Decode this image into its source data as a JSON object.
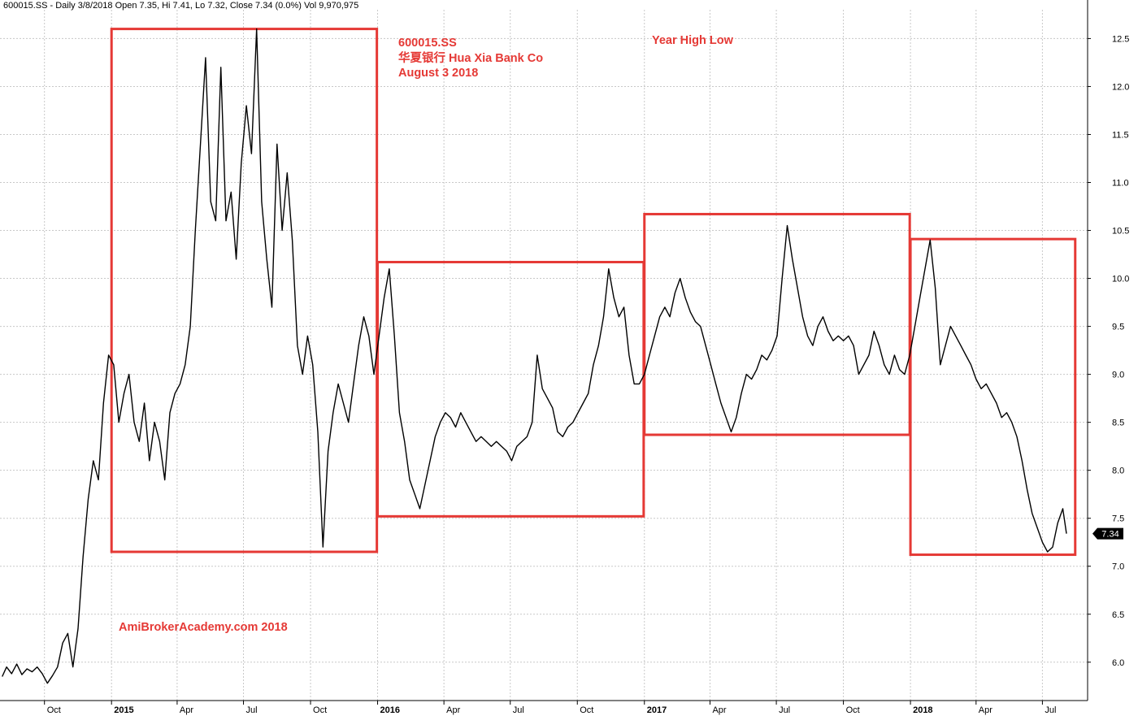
{
  "header": {
    "info_line": "600015.SS - Daily 3/8/2018 Open 7.35, Hi 7.41, Lo 7.32, Close 7.34 (0.0%) Vol 9,970,975"
  },
  "annotations": {
    "ticker": "600015.SS",
    "company": "华夏银行 Hua Xia Bank Co",
    "date": "August 3 2018",
    "study": "Year High Low",
    "watermark": "AmiBrokerAcademy.com   2018"
  },
  "colors": {
    "price_line": "#000000",
    "box": "#e53935",
    "grid": "#c8c8c8",
    "annotation": "#e53935",
    "last_price_tag": "#000000"
  },
  "chart_data": {
    "type": "line",
    "title": "600015.SS - Daily",
    "xlabel": "",
    "ylabel": "",
    "ylim": [
      5.6,
      12.8
    ],
    "y_ticks": [
      "6.0",
      "6.5",
      "7.0",
      "7.5",
      "8.0",
      "8.5",
      "9.0",
      "9.5",
      "10.0",
      "10.5",
      "11.0",
      "11.5",
      "12.0",
      "12.5"
    ],
    "x_ticks": [
      {
        "label": "Oct",
        "date": "2014-10-01",
        "bold": false
      },
      {
        "label": "2015",
        "date": "2015-01-01",
        "bold": true
      },
      {
        "label": "Apr",
        "date": "2015-04-01",
        "bold": false
      },
      {
        "label": "Jul",
        "date": "2015-07-01",
        "bold": false
      },
      {
        "label": "Oct",
        "date": "2015-10-01",
        "bold": false
      },
      {
        "label": "2016",
        "date": "2016-01-01",
        "bold": true
      },
      {
        "label": "Apr",
        "date": "2016-04-01",
        "bold": false
      },
      {
        "label": "Jul",
        "date": "2016-07-01",
        "bold": false
      },
      {
        "label": "Oct",
        "date": "2016-10-01",
        "bold": false
      },
      {
        "label": "2017",
        "date": "2017-01-01",
        "bold": true
      },
      {
        "label": "Apr",
        "date": "2017-04-01",
        "bold": false
      },
      {
        "label": "Jul",
        "date": "2017-07-01",
        "bold": false
      },
      {
        "label": "Oct",
        "date": "2017-10-01",
        "bold": false
      },
      {
        "label": "2018",
        "date": "2018-01-01",
        "bold": true
      },
      {
        "label": "Apr",
        "date": "2018-04-01",
        "bold": false
      },
      {
        "label": "Jul",
        "date": "2018-07-01",
        "bold": false
      }
    ],
    "grid": true,
    "last_price": 7.34,
    "last_price_label": "7.34",
    "series": [
      {
        "points": [
          [
            "2014-08-04",
            5.85
          ],
          [
            "2014-08-10",
            5.95
          ],
          [
            "2014-08-17",
            5.88
          ],
          [
            "2014-08-24",
            5.98
          ],
          [
            "2014-08-31",
            5.87
          ],
          [
            "2014-09-07",
            5.93
          ],
          [
            "2014-09-14",
            5.9
          ],
          [
            "2014-09-21",
            5.95
          ],
          [
            "2014-09-28",
            5.88
          ],
          [
            "2014-10-05",
            5.78
          ],
          [
            "2014-10-12",
            5.86
          ],
          [
            "2014-10-19",
            5.95
          ],
          [
            "2014-10-26",
            6.2
          ],
          [
            "2014-11-02",
            6.3
          ],
          [
            "2014-11-09",
            5.95
          ],
          [
            "2014-11-16",
            6.35
          ],
          [
            "2014-11-23",
            7.1
          ],
          [
            "2014-11-30",
            7.7
          ],
          [
            "2014-12-07",
            8.1
          ],
          [
            "2014-12-14",
            7.9
          ],
          [
            "2014-12-21",
            8.7
          ],
          [
            "2014-12-28",
            9.2
          ],
          [
            "2015-01-04",
            9.1
          ],
          [
            "2015-01-11",
            8.5
          ],
          [
            "2015-01-18",
            8.8
          ],
          [
            "2015-01-25",
            9.0
          ],
          [
            "2015-02-01",
            8.5
          ],
          [
            "2015-02-08",
            8.3
          ],
          [
            "2015-02-15",
            8.7
          ],
          [
            "2015-02-22",
            8.1
          ],
          [
            "2015-03-01",
            8.5
          ],
          [
            "2015-03-08",
            8.3
          ],
          [
            "2015-03-15",
            7.9
          ],
          [
            "2015-03-22",
            8.6
          ],
          [
            "2015-03-29",
            8.8
          ],
          [
            "2015-04-05",
            8.9
          ],
          [
            "2015-04-12",
            9.1
          ],
          [
            "2015-04-19",
            9.5
          ],
          [
            "2015-04-26",
            10.5
          ],
          [
            "2015-05-03",
            11.4
          ],
          [
            "2015-05-10",
            12.3
          ],
          [
            "2015-05-17",
            10.8
          ],
          [
            "2015-05-24",
            10.6
          ],
          [
            "2015-05-31",
            12.2
          ],
          [
            "2015-06-07",
            10.6
          ],
          [
            "2015-06-14",
            10.9
          ],
          [
            "2015-06-21",
            10.2
          ],
          [
            "2015-06-28",
            11.2
          ],
          [
            "2015-07-05",
            11.8
          ],
          [
            "2015-07-12",
            11.3
          ],
          [
            "2015-07-19",
            12.6
          ],
          [
            "2015-07-26",
            10.8
          ],
          [
            "2015-08-02",
            10.2
          ],
          [
            "2015-08-09",
            9.7
          ],
          [
            "2015-08-16",
            11.4
          ],
          [
            "2015-08-23",
            10.5
          ],
          [
            "2015-08-30",
            11.1
          ],
          [
            "2015-09-06",
            10.4
          ],
          [
            "2015-09-13",
            9.3
          ],
          [
            "2015-09-20",
            9.0
          ],
          [
            "2015-09-27",
            9.4
          ],
          [
            "2015-10-04",
            9.1
          ],
          [
            "2015-10-11",
            8.4
          ],
          [
            "2015-10-18",
            7.2
          ],
          [
            "2015-10-25",
            8.2
          ],
          [
            "2015-11-01",
            8.6
          ],
          [
            "2015-11-08",
            8.9
          ],
          [
            "2015-11-15",
            8.7
          ],
          [
            "2015-11-22",
            8.5
          ],
          [
            "2015-11-29",
            8.9
          ],
          [
            "2015-12-06",
            9.3
          ],
          [
            "2015-12-13",
            9.6
          ],
          [
            "2015-12-20",
            9.4
          ],
          [
            "2015-12-27",
            9.0
          ],
          [
            "2016-01-03",
            9.4
          ],
          [
            "2016-01-10",
            9.8
          ],
          [
            "2016-01-17",
            10.1
          ],
          [
            "2016-01-24",
            9.4
          ],
          [
            "2016-01-31",
            8.6
          ],
          [
            "2016-02-07",
            8.3
          ],
          [
            "2016-02-14",
            7.9
          ],
          [
            "2016-02-21",
            7.75
          ],
          [
            "2016-02-28",
            7.6
          ],
          [
            "2016-03-06",
            7.85
          ],
          [
            "2016-03-13",
            8.1
          ],
          [
            "2016-03-20",
            8.35
          ],
          [
            "2016-03-27",
            8.5
          ],
          [
            "2016-04-03",
            8.6
          ],
          [
            "2016-04-10",
            8.55
          ],
          [
            "2016-04-17",
            8.45
          ],
          [
            "2016-04-24",
            8.6
          ],
          [
            "2016-05-01",
            8.5
          ],
          [
            "2016-05-08",
            8.4
          ],
          [
            "2016-05-15",
            8.3
          ],
          [
            "2016-05-22",
            8.35
          ],
          [
            "2016-05-29",
            8.3
          ],
          [
            "2016-06-05",
            8.25
          ],
          [
            "2016-06-12",
            8.3
          ],
          [
            "2016-06-19",
            8.25
          ],
          [
            "2016-06-26",
            8.2
          ],
          [
            "2016-07-03",
            8.1
          ],
          [
            "2016-07-10",
            8.25
          ],
          [
            "2016-07-17",
            8.3
          ],
          [
            "2016-07-24",
            8.35
          ],
          [
            "2016-07-31",
            8.5
          ],
          [
            "2016-08-07",
            9.2
          ],
          [
            "2016-08-14",
            8.85
          ],
          [
            "2016-08-21",
            8.75
          ],
          [
            "2016-08-28",
            8.65
          ],
          [
            "2016-09-04",
            8.4
          ],
          [
            "2016-09-11",
            8.35
          ],
          [
            "2016-09-18",
            8.45
          ],
          [
            "2016-09-25",
            8.5
          ],
          [
            "2016-10-02",
            8.6
          ],
          [
            "2016-10-09",
            8.7
          ],
          [
            "2016-10-16",
            8.8
          ],
          [
            "2016-10-23",
            9.1
          ],
          [
            "2016-10-30",
            9.3
          ],
          [
            "2016-11-06",
            9.6
          ],
          [
            "2016-11-13",
            10.1
          ],
          [
            "2016-11-20",
            9.8
          ],
          [
            "2016-11-27",
            9.6
          ],
          [
            "2016-12-04",
            9.7
          ],
          [
            "2016-12-11",
            9.2
          ],
          [
            "2016-12-18",
            8.9
          ],
          [
            "2016-12-25",
            8.9
          ],
          [
            "2017-01-01",
            9.0
          ],
          [
            "2017-01-08",
            9.2
          ],
          [
            "2017-01-15",
            9.4
          ],
          [
            "2017-01-22",
            9.6
          ],
          [
            "2017-01-29",
            9.7
          ],
          [
            "2017-02-05",
            9.6
          ],
          [
            "2017-02-12",
            9.85
          ],
          [
            "2017-02-19",
            10.0
          ],
          [
            "2017-02-26",
            9.8
          ],
          [
            "2017-03-05",
            9.65
          ],
          [
            "2017-03-12",
            9.55
          ],
          [
            "2017-03-19",
            9.5
          ],
          [
            "2017-03-26",
            9.3
          ],
          [
            "2017-04-02",
            9.1
          ],
          [
            "2017-04-09",
            8.9
          ],
          [
            "2017-04-16",
            8.7
          ],
          [
            "2017-04-23",
            8.55
          ],
          [
            "2017-04-30",
            8.4
          ],
          [
            "2017-05-07",
            8.55
          ],
          [
            "2017-05-14",
            8.8
          ],
          [
            "2017-05-21",
            9.0
          ],
          [
            "2017-05-28",
            8.95
          ],
          [
            "2017-06-04",
            9.05
          ],
          [
            "2017-06-11",
            9.2
          ],
          [
            "2017-06-18",
            9.15
          ],
          [
            "2017-06-25",
            9.25
          ],
          [
            "2017-07-02",
            9.4
          ],
          [
            "2017-07-09",
            10.0
          ],
          [
            "2017-07-16",
            10.55
          ],
          [
            "2017-07-23",
            10.2
          ],
          [
            "2017-07-30",
            9.9
          ],
          [
            "2017-08-06",
            9.6
          ],
          [
            "2017-08-13",
            9.4
          ],
          [
            "2017-08-20",
            9.3
          ],
          [
            "2017-08-27",
            9.5
          ],
          [
            "2017-09-03",
            9.6
          ],
          [
            "2017-09-10",
            9.45
          ],
          [
            "2017-09-17",
            9.35
          ],
          [
            "2017-09-24",
            9.4
          ],
          [
            "2017-10-01",
            9.35
          ],
          [
            "2017-10-08",
            9.4
          ],
          [
            "2017-10-15",
            9.3
          ],
          [
            "2017-10-22",
            9.0
          ],
          [
            "2017-10-29",
            9.1
          ],
          [
            "2017-11-05",
            9.2
          ],
          [
            "2017-11-12",
            9.45
          ],
          [
            "2017-11-19",
            9.3
          ],
          [
            "2017-11-26",
            9.1
          ],
          [
            "2017-12-03",
            9.0
          ],
          [
            "2017-12-10",
            9.2
          ],
          [
            "2017-12-17",
            9.05
          ],
          [
            "2017-12-24",
            9.0
          ],
          [
            "2017-12-31",
            9.2
          ],
          [
            "2018-01-07",
            9.5
          ],
          [
            "2018-01-14",
            9.8
          ],
          [
            "2018-01-21",
            10.1
          ],
          [
            "2018-01-28",
            10.4
          ],
          [
            "2018-02-04",
            9.9
          ],
          [
            "2018-02-11",
            9.1
          ],
          [
            "2018-02-18",
            9.3
          ],
          [
            "2018-02-25",
            9.5
          ],
          [
            "2018-03-04",
            9.4
          ],
          [
            "2018-03-11",
            9.3
          ],
          [
            "2018-03-18",
            9.2
          ],
          [
            "2018-03-25",
            9.1
          ],
          [
            "2018-04-01",
            8.95
          ],
          [
            "2018-04-08",
            8.85
          ],
          [
            "2018-04-15",
            8.9
          ],
          [
            "2018-04-22",
            8.8
          ],
          [
            "2018-04-29",
            8.7
          ],
          [
            "2018-05-06",
            8.55
          ],
          [
            "2018-05-13",
            8.6
          ],
          [
            "2018-05-20",
            8.5
          ],
          [
            "2018-05-27",
            8.35
          ],
          [
            "2018-06-03",
            8.1
          ],
          [
            "2018-06-10",
            7.8
          ],
          [
            "2018-06-17",
            7.55
          ],
          [
            "2018-06-24",
            7.4
          ],
          [
            "2018-07-01",
            7.25
          ],
          [
            "2018-07-08",
            7.15
          ],
          [
            "2018-07-15",
            7.2
          ],
          [
            "2018-07-22",
            7.45
          ],
          [
            "2018-07-29",
            7.6
          ],
          [
            "2018-08-03",
            7.34
          ]
        ]
      }
    ],
    "boxes": [
      {
        "start": "2015-01-01",
        "end": "2015-12-31",
        "low": 7.15,
        "high": 12.6
      },
      {
        "start": "2016-01-01",
        "end": "2016-12-31",
        "low": 7.52,
        "high": 10.17
      },
      {
        "start": "2017-01-01",
        "end": "2017-12-31",
        "low": 8.37,
        "high": 10.67
      },
      {
        "start": "2018-01-01",
        "end": "2018-08-15",
        "low": 7.12,
        "high": 10.41
      }
    ]
  }
}
